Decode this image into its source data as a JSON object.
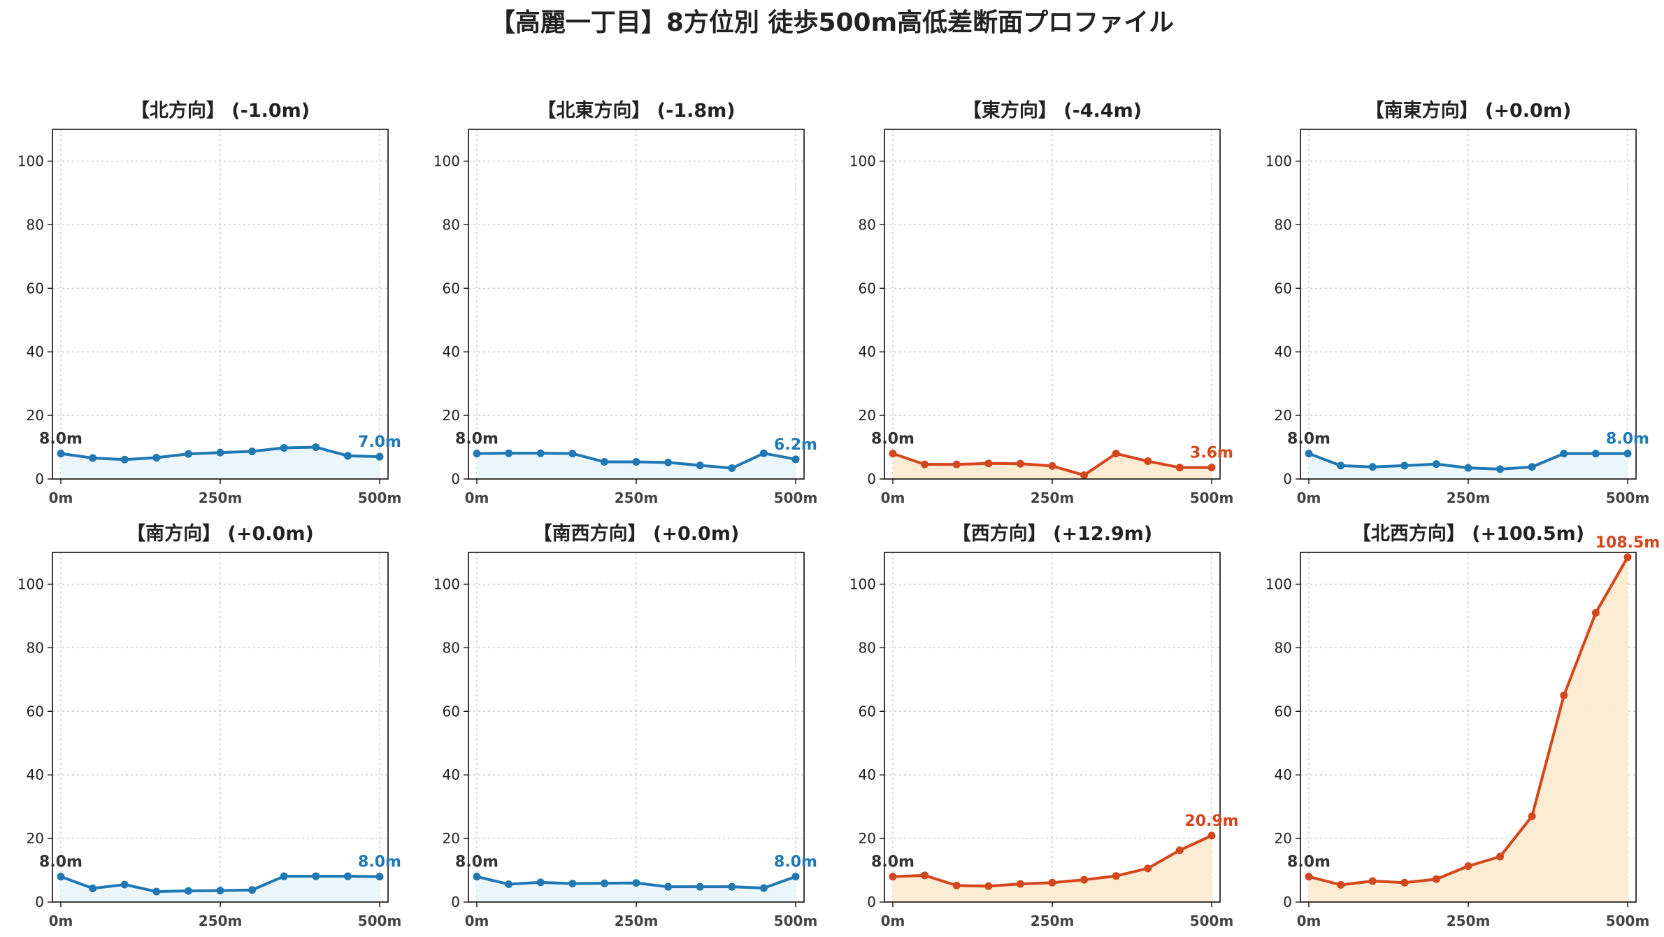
{
  "title": "【高麗一丁目】8方位別 徒歩500m高低差断面プロファイル",
  "colors": {
    "down_line": "#1f78b4",
    "down_fill": "#eaf6fb",
    "up_line": "#d4461c",
    "up_fill": "#fdebd2"
  },
  "chart_data": [
    {
      "type": "line",
      "title": "【北方向】 (-1.0m)",
      "trend": "down",
      "x": [
        0,
        50,
        100,
        150,
        200,
        250,
        300,
        350,
        400,
        450,
        500
      ],
      "y": [
        8.0,
        6.6,
        6.1,
        6.7,
        7.9,
        8.3,
        8.7,
        9.8,
        10.0,
        7.3,
        7.0
      ],
      "start_label": "8.0m",
      "end_label": "7.0m",
      "xticks": [
        "0m",
        "250m",
        "500m"
      ],
      "yticks": [
        0,
        20,
        40,
        60,
        80,
        100
      ],
      "ylim": [
        0,
        110
      ],
      "grid": true
    },
    {
      "type": "line",
      "title": "【北東方向】 (-1.8m)",
      "trend": "down",
      "x": [
        0,
        50,
        100,
        150,
        200,
        250,
        300,
        350,
        400,
        450,
        500
      ],
      "y": [
        8.0,
        8.1,
        8.1,
        8.0,
        5.4,
        5.4,
        5.2,
        4.3,
        3.4,
        8.1,
        6.2
      ],
      "start_label": "8.0m",
      "end_label": "6.2m",
      "xticks": [
        "0m",
        "250m",
        "500m"
      ],
      "yticks": [
        0,
        20,
        40,
        60,
        80,
        100
      ],
      "ylim": [
        0,
        110
      ],
      "grid": true
    },
    {
      "type": "line",
      "title": "【東方向】 (-4.4m)",
      "trend": "down_warm",
      "x": [
        0,
        50,
        100,
        150,
        200,
        250,
        300,
        350,
        400,
        450,
        500
      ],
      "y": [
        8.0,
        4.6,
        4.6,
        4.9,
        4.8,
        4.1,
        1.2,
        8.0,
        5.6,
        3.6,
        3.6
      ],
      "start_label": "8.0m",
      "end_label": "3.6m",
      "xticks": [
        "0m",
        "250m",
        "500m"
      ],
      "yticks": [
        0,
        20,
        40,
        60,
        80,
        100
      ],
      "ylim": [
        0,
        110
      ],
      "grid": true
    },
    {
      "type": "line",
      "title": "【南東方向】 (+0.0m)",
      "trend": "flat",
      "x": [
        0,
        50,
        100,
        150,
        200,
        250,
        300,
        350,
        400,
        450,
        500
      ],
      "y": [
        8.0,
        4.2,
        3.8,
        4.2,
        4.7,
        3.5,
        3.1,
        3.8,
        8.0,
        8.0,
        8.0
      ],
      "start_label": "8.0m",
      "end_label": "8.0m",
      "xticks": [
        "0m",
        "250m",
        "500m"
      ],
      "yticks": [
        0,
        20,
        40,
        60,
        80,
        100
      ],
      "ylim": [
        0,
        110
      ],
      "grid": true
    },
    {
      "type": "line",
      "title": "【南方向】 (+0.0m)",
      "trend": "flat",
      "x": [
        0,
        50,
        100,
        150,
        200,
        250,
        300,
        350,
        400,
        450,
        500
      ],
      "y": [
        8.0,
        4.3,
        5.5,
        3.3,
        3.5,
        3.6,
        3.8,
        8.1,
        8.1,
        8.1,
        8.0
      ],
      "start_label": "8.0m",
      "end_label": "8.0m",
      "xticks": [
        "0m",
        "250m",
        "500m"
      ],
      "yticks": [
        0,
        20,
        40,
        60,
        80,
        100
      ],
      "ylim": [
        0,
        110
      ],
      "grid": true
    },
    {
      "type": "line",
      "title": "【南西方向】 (+0.0m)",
      "trend": "flat",
      "x": [
        0,
        50,
        100,
        150,
        200,
        250,
        300,
        350,
        400,
        450,
        500
      ],
      "y": [
        8.0,
        5.6,
        6.2,
        5.8,
        5.9,
        6.0,
        4.8,
        4.8,
        4.8,
        4.4,
        8.0
      ],
      "start_label": "8.0m",
      "end_label": "8.0m",
      "xticks": [
        "0m",
        "250m",
        "500m"
      ],
      "yticks": [
        0,
        20,
        40,
        60,
        80,
        100
      ],
      "ylim": [
        0,
        110
      ],
      "grid": true
    },
    {
      "type": "line",
      "title": "【西方向】 (+12.9m)",
      "trend": "up",
      "x": [
        0,
        50,
        100,
        150,
        200,
        250,
        300,
        350,
        400,
        450,
        500
      ],
      "y": [
        8.0,
        8.4,
        5.2,
        5.0,
        5.7,
        6.1,
        7.0,
        8.2,
        10.6,
        16.3,
        20.9
      ],
      "start_label": "8.0m",
      "end_label": "20.9m",
      "xticks": [
        "0m",
        "250m",
        "500m"
      ],
      "yticks": [
        0,
        20,
        40,
        60,
        80,
        100
      ],
      "ylim": [
        0,
        110
      ],
      "grid": true
    },
    {
      "type": "line",
      "title": "【北西方向】 (+100.5m)",
      "trend": "up",
      "x": [
        0,
        50,
        100,
        150,
        200,
        250,
        300,
        350,
        400,
        450,
        500
      ],
      "y": [
        8.0,
        5.4,
        6.6,
        6.1,
        7.2,
        11.3,
        14.3,
        27.0,
        65.0,
        91.0,
        108.5
      ],
      "start_label": "8.0m",
      "end_label": "108.5m",
      "xticks": [
        "0m",
        "250m",
        "500m"
      ],
      "yticks": [
        0,
        20,
        40,
        60,
        80,
        100
      ],
      "ylim": [
        0,
        110
      ],
      "grid": true
    }
  ]
}
